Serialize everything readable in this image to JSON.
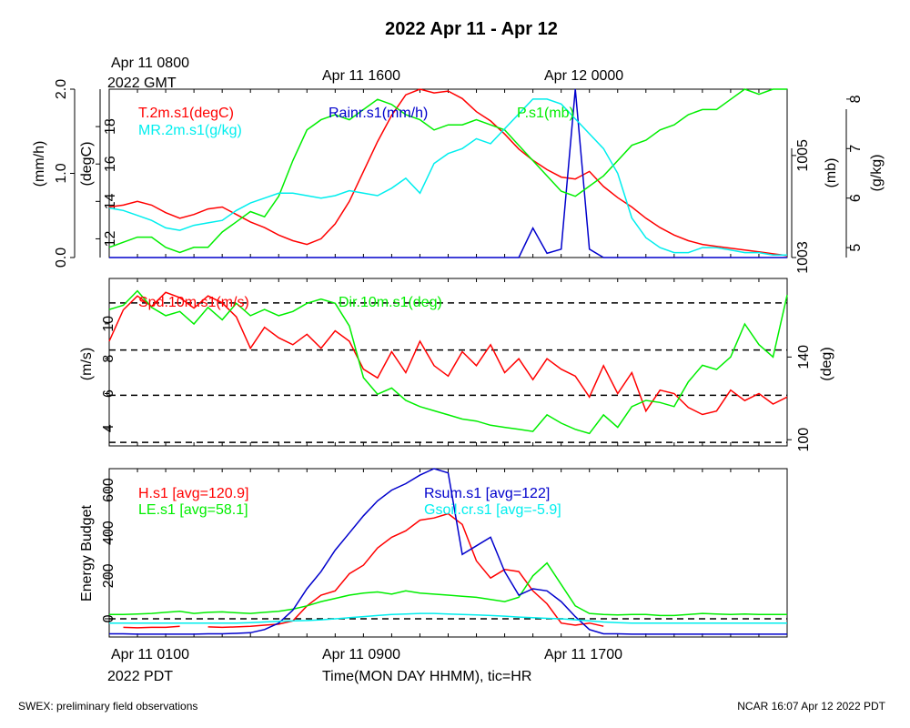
{
  "title": "2022 Apr 11 - Apr 12",
  "top_time_labels": [
    {
      "line1": "Apr 11 0800",
      "line2": "2022 GMT"
    },
    {
      "line1": "Apr 11 1600",
      "line2": ""
    },
    {
      "line1": "Apr 12 0000",
      "line2": ""
    }
  ],
  "bottom_time_labels": [
    {
      "line1": "Apr 11 0100",
      "line2": "2022 PDT"
    },
    {
      "line1": "Apr 11 0900",
      "line2": ""
    },
    {
      "line1": "Apr 11 1700",
      "line2": ""
    }
  ],
  "xlabel": "Time(MON DAY HHMM), tic=HR",
  "footer_left": "SWEX: preliminary field observations",
  "footer_right": "NCAR 16:07 Apr 12 2022 PDT",
  "colors": {
    "red": "#ff0000",
    "green": "#00ee00",
    "blue": "#0000cc",
    "cyan": "#00eeee",
    "black": "#000000"
  },
  "chart_data": [
    {
      "type": "line",
      "panel": "top",
      "x": [
        0.0,
        0.5,
        1.0,
        1.5,
        2.0,
        2.5,
        3.0,
        3.5,
        4.0,
        4.5,
        5.0,
        5.5,
        6.0,
        6.5,
        7.0,
        7.5,
        8.0,
        8.5,
        9.0,
        9.5,
        10.0,
        10.5,
        11.0,
        11.5,
        12.0,
        12.5,
        13.0,
        13.5,
        14.0,
        14.5,
        15.0,
        15.5,
        16.0,
        16.5,
        17.0,
        17.5,
        18.0,
        18.5,
        19.0,
        19.5,
        20.0,
        20.5,
        21.0,
        21.5,
        22.0,
        22.5,
        23.0,
        23.5,
        24.0
      ],
      "axes": {
        "left_outer": {
          "label": "(mm/h)",
          "ticks": [
            "0.0",
            "1.0",
            "2.0"
          ],
          "range": [
            0,
            2
          ]
        },
        "left_inner": {
          "label": "(degC)",
          "ticks": [
            "12",
            "14",
            "16",
            "18"
          ],
          "range": [
            11,
            20
          ]
        },
        "right_inner": {
          "label": "(mb)",
          "ticks": [
            "1003",
            "1005"
          ],
          "range": [
            1003,
            1006.3
          ]
        },
        "right_outer": {
          "label": "(g/kg)",
          "ticks": [
            "5",
            "6",
            "7",
            "8"
          ],
          "range": [
            4.8,
            8.2
          ]
        }
      },
      "series": [
        {
          "name": "T.2m.s1(degC)",
          "axis": "left_inner",
          "color": "#ff0000",
          "values": [
            13.7,
            13.8,
            14.0,
            13.8,
            13.4,
            13.1,
            13.3,
            13.6,
            13.7,
            13.3,
            12.9,
            12.6,
            12.2,
            11.9,
            11.7,
            12.0,
            12.8,
            14.0,
            15.6,
            17.2,
            18.6,
            19.7,
            20.0,
            19.8,
            19.9,
            19.5,
            18.8,
            18.3,
            17.6,
            16.8,
            16.2,
            15.7,
            15.3,
            15.2,
            15.6,
            14.8,
            14.2,
            13.7,
            13.1,
            12.6,
            12.2,
            11.9,
            11.7,
            11.6,
            11.5,
            11.4,
            11.3,
            11.2,
            11.1
          ]
        },
        {
          "name": "Rainr.s1(mm/h)",
          "axis": "left_outer",
          "color": "#0000cc",
          "values": [
            0,
            0,
            0,
            0,
            0,
            0,
            0,
            0,
            0,
            0,
            0,
            0,
            0,
            0,
            0,
            0,
            0,
            0,
            0,
            0,
            0,
            0,
            0,
            0,
            0,
            0,
            0,
            0,
            0,
            0,
            0.35,
            0.05,
            0.1,
            2.0,
            0.1,
            0,
            0,
            0,
            0,
            0,
            0,
            0,
            0,
            0,
            0,
            0,
            0,
            0,
            0
          ]
        },
        {
          "name": "P.s1(mb)",
          "axis": "right_inner",
          "color": "#00ee00",
          "values": [
            1003.2,
            1003.3,
            1003.4,
            1003.4,
            1003.2,
            1003.1,
            1003.2,
            1003.2,
            1003.5,
            1003.7,
            1003.9,
            1003.8,
            1004.2,
            1004.9,
            1005.5,
            1005.7,
            1005.8,
            1005.7,
            1005.9,
            1006.1,
            1006.0,
            1005.8,
            1005.7,
            1005.5,
            1005.6,
            1005.6,
            1005.7,
            1005.6,
            1005.5,
            1005.2,
            1004.9,
            1004.6,
            1004.3,
            1004.2,
            1004.4,
            1004.6,
            1004.9,
            1005.2,
            1005.3,
            1005.5,
            1005.6,
            1005.8,
            1005.9,
            1005.9,
            1006.1,
            1006.3,
            1006.2,
            1006.3,
            1006.3
          ]
        },
        {
          "name": "MR.2m.s1(g/kg)",
          "axis": "right_outer",
          "color": "#00eeee",
          "values": [
            5.8,
            5.75,
            5.65,
            5.55,
            5.4,
            5.35,
            5.45,
            5.5,
            5.55,
            5.75,
            5.9,
            6.0,
            6.1,
            6.1,
            6.05,
            6.0,
            6.05,
            6.15,
            6.1,
            6.05,
            6.2,
            6.4,
            6.1,
            6.7,
            6.9,
            7.0,
            7.2,
            7.1,
            7.4,
            7.7,
            8.0,
            8.0,
            7.9,
            7.6,
            7.3,
            7.0,
            6.5,
            5.6,
            5.2,
            5.0,
            4.9,
            4.9,
            5.0,
            5.0,
            4.95,
            4.9,
            4.9,
            4.85,
            4.85
          ]
        }
      ]
    },
    {
      "type": "line",
      "panel": "middle",
      "x": [
        0.0,
        0.5,
        1.0,
        1.5,
        2.0,
        2.5,
        3.0,
        3.5,
        4.0,
        4.5,
        5.0,
        5.5,
        6.0,
        6.5,
        7.0,
        7.5,
        8.0,
        8.5,
        9.0,
        9.5,
        10.0,
        10.5,
        11.0,
        11.5,
        12.0,
        12.5,
        13.0,
        13.5,
        14.0,
        14.5,
        15.0,
        15.5,
        16.0,
        16.5,
        17.0,
        17.5,
        18.0,
        18.5,
        19.0,
        19.5,
        20.0,
        20.5,
        21.0,
        21.5,
        22.0,
        22.5,
        23.0,
        23.5,
        24.0
      ],
      "axes": {
        "left": {
          "label": "(m/s)",
          "ticks": [
            "4",
            "6",
            "8",
            "10"
          ],
          "range": [
            3,
            12.6
          ]
        },
        "right": {
          "label": "(deg)",
          "ticks": [
            "100",
            "140"
          ],
          "range": [
            97,
            178
          ]
        }
      },
      "reference_lines": [
        3.2,
        5.9,
        8.5,
        11.2
      ],
      "series": [
        {
          "name": "Spd.10m.s1(m/s)",
          "axis": "left",
          "color": "#ff0000",
          "values": [
            9.0,
            10.8,
            11.6,
            11.0,
            11.8,
            11.5,
            10.9,
            11.6,
            11.2,
            10.4,
            8.6,
            9.8,
            9.2,
            8.8,
            9.4,
            8.6,
            9.6,
            9.0,
            7.4,
            6.9,
            8.4,
            7.2,
            9.0,
            7.6,
            7.0,
            8.4,
            7.6,
            8.8,
            7.2,
            8.0,
            6.8,
            8.0,
            7.4,
            7.0,
            5.8,
            7.6,
            6.0,
            7.2,
            5.0,
            6.2,
            6.0,
            5.2,
            4.8,
            5.0,
            6.2,
            5.6,
            6.0,
            5.4,
            5.8
          ]
        },
        {
          "name": "Dir.10m.s1(deg)",
          "axis": "right",
          "color": "#00ee00",
          "values": [
            163,
            165,
            172,
            164,
            160,
            162,
            156,
            164,
            158,
            166,
            160,
            163,
            160,
            162,
            166,
            168,
            166,
            155,
            130,
            122,
            125,
            119,
            116,
            114,
            112,
            110,
            109,
            107,
            106,
            105,
            104,
            112,
            108,
            105,
            103,
            112,
            106,
            116,
            119,
            118,
            116,
            128,
            136,
            134,
            140,
            156,
            146,
            140,
            170
          ]
        }
      ]
    },
    {
      "type": "line",
      "panel": "bottom",
      "x": [
        0.0,
        0.5,
        1.0,
        1.5,
        2.0,
        2.5,
        3.0,
        3.5,
        4.0,
        4.5,
        5.0,
        5.5,
        6.0,
        6.5,
        7.0,
        7.5,
        8.0,
        8.5,
        9.0,
        9.5,
        10.0,
        10.5,
        11.0,
        11.5,
        12.0,
        12.5,
        13.0,
        13.5,
        14.0,
        14.5,
        15.0,
        15.5,
        16.0,
        16.5,
        17.0,
        17.5,
        18.0,
        18.5,
        19.0,
        19.5,
        20.0,
        20.5,
        21.0,
        21.5,
        22.0,
        22.5,
        23.0,
        23.5,
        24.0
      ],
      "axes": {
        "left": {
          "label": "Energy Budget",
          "ticks": [
            "0",
            "200",
            "400",
            "600"
          ],
          "range": [
            -85,
            700
          ]
        }
      },
      "reference_lines": [
        0
      ],
      "series": [
        {
          "name": "H.s1",
          "avg_label": "[avg=120.9]",
          "color": "#ff0000",
          "values": [
            null,
            -40,
            -42,
            -40,
            -40,
            -35,
            null,
            -38,
            -40,
            -38,
            -35,
            -30,
            -25,
            -10,
            60,
            110,
            130,
            210,
            250,
            330,
            380,
            410,
            460,
            470,
            490,
            440,
            270,
            190,
            230,
            220,
            130,
            70,
            -20,
            -30,
            -20,
            -35,
            null,
            null,
            null,
            null,
            null,
            null,
            null,
            null,
            null,
            null,
            null,
            null,
            null
          ]
        },
        {
          "name": "LE.s1",
          "avg_label": "[avg=58.1]",
          "color": "#00ee00",
          "values": [
            20,
            20,
            22,
            25,
            30,
            35,
            25,
            30,
            32,
            28,
            25,
            30,
            35,
            45,
            60,
            80,
            95,
            110,
            120,
            125,
            115,
            130,
            120,
            115,
            110,
            105,
            100,
            90,
            80,
            100,
            200,
            260,
            160,
            60,
            25,
            20,
            18,
            20,
            20,
            15,
            15,
            20,
            25,
            22,
            20,
            22,
            20,
            20,
            20
          ]
        },
        {
          "name": "Rsum.s1",
          "avg_label": "[avg=122]",
          "color": "#0000cc",
          "values": [
            -70,
            -70,
            -72,
            -72,
            -72,
            -72,
            -72,
            -70,
            -70,
            -68,
            -65,
            -50,
            -20,
            40,
            140,
            220,
            320,
            400,
            480,
            550,
            600,
            630,
            670,
            700,
            680,
            300,
            340,
            380,
            220,
            110,
            140,
            130,
            80,
            10,
            -50,
            -70,
            -70,
            -72,
            -72,
            -72,
            -72,
            -72,
            -72,
            -72,
            -72,
            -72,
            -72,
            -72,
            -72
          ]
        },
        {
          "name": "Gsoil.cr.s1",
          "avg_label": "[avg=-5.9]",
          "color": "#00eeee",
          "values": [
            -20,
            -20,
            -20,
            -20,
            -20,
            -20,
            -20,
            -20,
            -20,
            -20,
            -18,
            -15,
            -12,
            -10,
            -8,
            -5,
            0,
            5,
            10,
            15,
            20,
            22,
            25,
            25,
            22,
            20,
            18,
            15,
            12,
            8,
            5,
            2,
            0,
            -5,
            -10,
            -15,
            -18,
            -20,
            -20,
            -20,
            -20,
            -20,
            -20,
            -20,
            -20,
            -20,
            -20,
            -20,
            -20
          ]
        }
      ]
    }
  ]
}
